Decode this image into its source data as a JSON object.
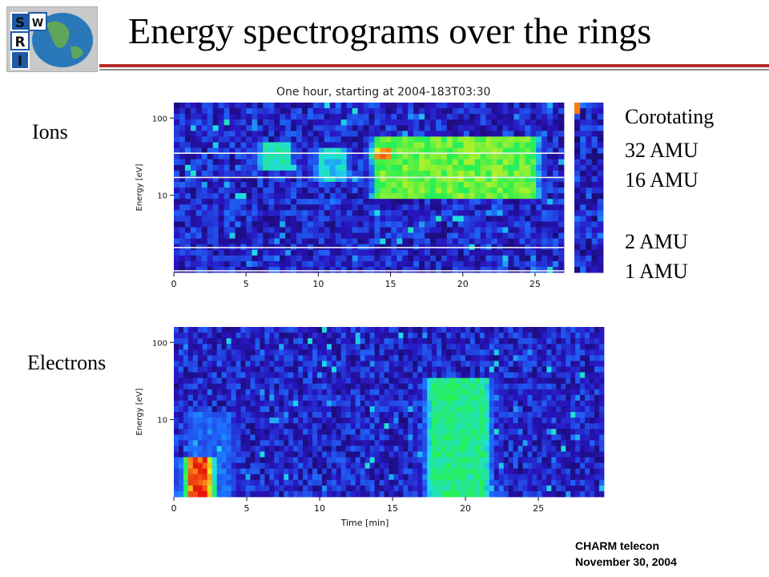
{
  "slide": {
    "title": "Energy spectrograms over the rings",
    "ions_label": "Ions",
    "electrons_label": "Electrons",
    "footer_line1": "CHARM telecon",
    "footer_line2": "November 30, 2004"
  },
  "logo": {
    "letters": [
      "S",
      "W",
      "R",
      "I"
    ]
  },
  "legend": {
    "heading": "Corotating",
    "lines": [
      "32 AMU",
      "16 AMU",
      "2 AMU",
      "1 AMU"
    ]
  },
  "colors": {
    "accent_red": "#b32a2a",
    "rule_gray": "#8a8a8a"
  },
  "chart_data": [
    {
      "type": "heatmap",
      "title": "One hour, starting at 2004-183T03:30",
      "xlabel": "",
      "ylabel": "Energy [eV]",
      "x_ticks": [
        "0",
        "5",
        "10",
        "15",
        "20",
        "25"
      ],
      "y_ticks": [
        "10",
        "100"
      ],
      "x_range": [
        0,
        27
      ],
      "y_range_log10": [
        0,
        2.2
      ],
      "y_scale": "log",
      "reference_lines_eV": [
        35,
        17,
        2.1,
        1.05
      ],
      "reference_line_labels": [
        "32 AMU",
        "16 AMU",
        "2 AMU",
        "1 AMU"
      ],
      "features": [
        {
          "t_start": 5,
          "t_end": 9,
          "e_low": 20,
          "e_high": 45,
          "level": 0.55
        },
        {
          "t_start": 9,
          "t_end": 13,
          "e_low": 14,
          "e_high": 40,
          "level": 0.5
        },
        {
          "t_start": 13,
          "t_end": 26,
          "e_low": 9,
          "e_high": 55,
          "level": 0.7
        },
        {
          "t_start": 13,
          "t_end": 16,
          "e_low": 28,
          "e_high": 40,
          "level": 0.95
        }
      ],
      "side_panel": "corotating"
    },
    {
      "type": "heatmap",
      "title": "",
      "xlabel": "Time [min]",
      "ylabel": "Energy [eV]",
      "x_ticks": [
        "0",
        "5",
        "10",
        "15",
        "20",
        "25"
      ],
      "y_ticks": [
        "10",
        "100"
      ],
      "x_range": [
        0,
        29.5
      ],
      "y_range_log10": [
        0,
        2.2
      ],
      "y_scale": "log",
      "features": [
        {
          "t_start": 0,
          "t_end": 3.5,
          "e_low": 1,
          "e_high": 3,
          "level": 0.95
        },
        {
          "t_start": 0,
          "t_end": 5,
          "e_low": 1,
          "e_high": 12,
          "level": 0.35
        },
        {
          "t_start": 16.5,
          "t_end": 22.5,
          "e_low": 1,
          "e_high": 35,
          "level": 0.6
        }
      ]
    }
  ]
}
